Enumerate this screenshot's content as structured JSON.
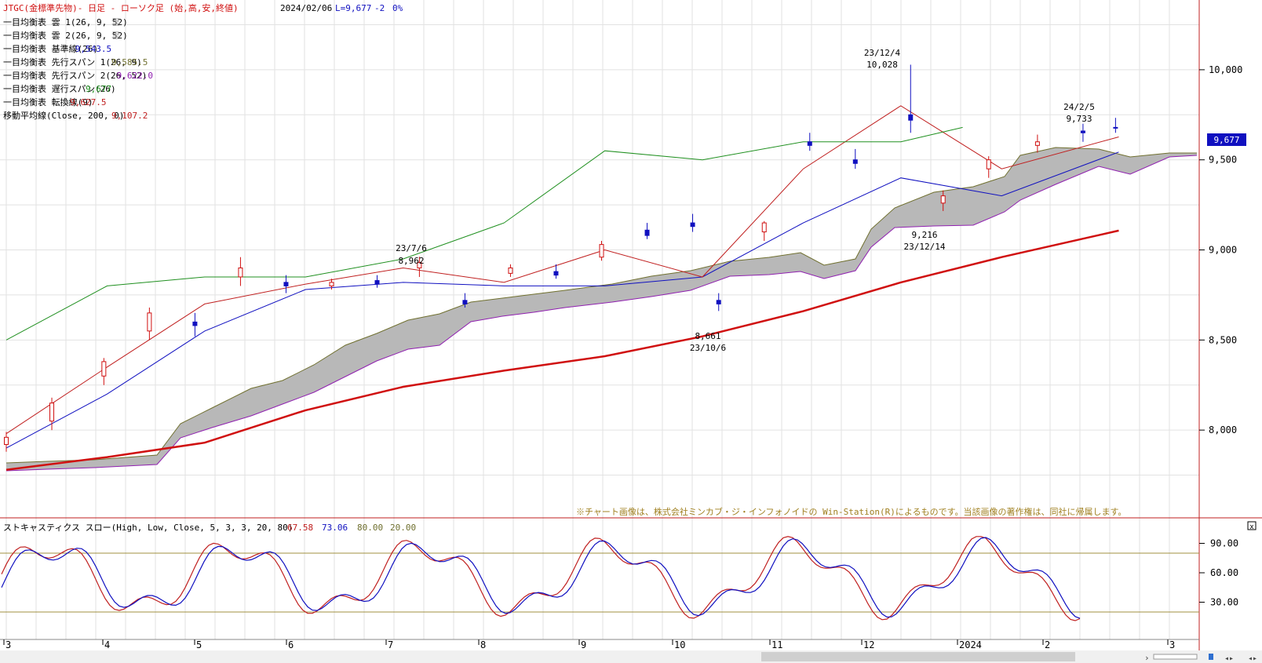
{
  "header": {
    "title": "JTGC(金標準先物)- 日足 - ローソク足 (始,高,安,終値)",
    "date": "2024/02/06",
    "last": "L=9,677",
    "change": "-2",
    "pct": "0%"
  },
  "legend": [
    {
      "label": "一目均衡表 雲 1(26, 9, 52)",
      "value": "雲",
      "color": "#a0a0a0"
    },
    {
      "label": "一目均衡表 雲 2(26, 9, 52)",
      "value": "雲",
      "color": "#a0a0a0"
    },
    {
      "label": "一目均衡表 基準線(26)",
      "value": "9,543.5",
      "color": "#1010c0"
    },
    {
      "label": "一目均衡表 先行スパン 1(26, 9)",
      "value": "9,585.5",
      "color": "#707030"
    },
    {
      "label": "一目均衡表 先行スパン 2(26, 52)",
      "value": "9,622.0",
      "color": "#9020b0"
    },
    {
      "label": "一目均衡表 遅行スパン(26)",
      "value": "9,677",
      "color": "#209020"
    },
    {
      "label": "一目均衡表 転換線(9)",
      "value": "9,627.5",
      "color": "#c02020"
    },
    {
      "label": "移動平均線(Close, 200, 0)",
      "value": "9,107.2",
      "color": "#c02020"
    }
  ],
  "annotations": [
    {
      "date": "23/7/6",
      "value": "8,962"
    },
    {
      "date": "23/12/4",
      "value": "10,028"
    },
    {
      "date": "24/2/5",
      "value": "9,733"
    },
    {
      "date": "23/12/14",
      "value": "9,216"
    },
    {
      "date": "23/10/6",
      "value": "8,661"
    }
  ],
  "last_price_tag": "9,677",
  "copyright": "※チャート画像は、株式会社ミンカブ・ジ・インフォノイドの Win-Station(R)によるものです。当該画像の著作権は、同社に帰属します。",
  "stoch": {
    "title": "ストキャスティクス スロー(High, Low, Close, 5, 3, 3, 20, 80)",
    "k_value": "67.58",
    "d_value": "73.06",
    "upper": "80.00",
    "lower": "20.00",
    "k_color": "#c02020",
    "d_color": "#1010c0",
    "ticks": [
      "90.00",
      "60.00",
      "30.00"
    ]
  },
  "price_ticks": [
    "10,000",
    "9,500",
    "9,000",
    "8,500",
    "8,000"
  ],
  "x_labels": [
    "3",
    "4",
    "5",
    "6",
    "7",
    "8",
    "9",
    "10",
    "11",
    "12",
    "2024",
    "2",
    "3"
  ],
  "chart_data": {
    "type": "candlestick",
    "title": "JTGC(金標準先物)- 日足 - ローソク足",
    "ylim": [
      7600,
      10300
    ],
    "x_range": [
      "2023-03-01",
      "2024-03-01"
    ],
    "series": [
      {
        "name": "移動平均線(Close, 200, 0)",
        "points": [
          [
            "2023-03-01",
            7780
          ],
          [
            "2023-04-01",
            7850
          ],
          [
            "2023-05-01",
            7930
          ],
          [
            "2023-06-01",
            8110
          ],
          [
            "2023-07-01",
            8240
          ],
          [
            "2023-08-01",
            8330
          ],
          [
            "2023-09-01",
            8410
          ],
          [
            "2023-10-01",
            8520
          ],
          [
            "2023-11-01",
            8660
          ],
          [
            "2023-12-01",
            8820
          ],
          [
            "2024-01-01",
            8960
          ],
          [
            "2024-02-06",
            9107
          ]
        ]
      },
      {
        "name": "一目均衡表 基準線(26)",
        "points": [
          [
            "2023-03-01",
            7900
          ],
          [
            "2023-04-01",
            8200
          ],
          [
            "2023-05-01",
            8550
          ],
          [
            "2023-06-01",
            8780
          ],
          [
            "2023-07-01",
            8820
          ],
          [
            "2023-08-01",
            8800
          ],
          [
            "2023-09-01",
            8800
          ],
          [
            "2023-10-01",
            8850
          ],
          [
            "2023-11-01",
            9150
          ],
          [
            "2023-12-01",
            9400
          ],
          [
            "2024-01-01",
            9300
          ],
          [
            "2024-02-06",
            9543
          ]
        ]
      },
      {
        "name": "一目均衡表 転換線(9)",
        "points": [
          [
            "2023-03-01",
            7980
          ],
          [
            "2023-04-01",
            8350
          ],
          [
            "2023-05-01",
            8700
          ],
          [
            "2023-06-01",
            8810
          ],
          [
            "2023-07-01",
            8900
          ],
          [
            "2023-08-01",
            8820
          ],
          [
            "2023-09-01",
            9000
          ],
          [
            "2023-10-01",
            8850
          ],
          [
            "2023-11-01",
            9450
          ],
          [
            "2023-12-01",
            9800
          ],
          [
            "2024-01-01",
            9450
          ],
          [
            "2024-02-06",
            9627
          ]
        ]
      },
      {
        "name": "一目均衡表 遅行スパン(26)",
        "points": [
          [
            "2023-03-01",
            8500
          ],
          [
            "2023-04-01",
            8800
          ],
          [
            "2023-05-01",
            8850
          ],
          [
            "2023-06-01",
            8850
          ],
          [
            "2023-07-01",
            8950
          ],
          [
            "2023-08-01",
            9150
          ],
          [
            "2023-09-01",
            9550
          ],
          [
            "2023-10-01",
            9500
          ],
          [
            "2023-11-01",
            9600
          ],
          [
            "2023-12-01",
            9600
          ],
          [
            "2023-12-20",
            9680
          ]
        ]
      }
    ],
    "candles": [
      [
        "2023-03-01",
        7920,
        7990,
        7880,
        7960
      ],
      [
        "2023-03-15",
        8050,
        8180,
        8000,
        8150
      ],
      [
        "2023-03-31",
        8300,
        8400,
        8250,
        8380
      ],
      [
        "2023-04-14",
        8550,
        8680,
        8500,
        8650
      ],
      [
        "2023-04-28",
        8600,
        8650,
        8520,
        8580
      ],
      [
        "2023-05-12",
        8850,
        8960,
        8800,
        8900
      ],
      [
        "2023-05-26",
        8820,
        8860,
        8760,
        8800
      ],
      [
        "2023-06-09",
        8800,
        8840,
        8780,
        8820
      ],
      [
        "2023-06-23",
        8830,
        8860,
        8790,
        8810
      ],
      [
        "2023-07-06",
        8900,
        8962,
        8850,
        8930
      ],
      [
        "2023-07-20",
        8720,
        8760,
        8680,
        8700
      ],
      [
        "2023-08-03",
        8870,
        8920,
        8850,
        8900
      ],
      [
        "2023-08-17",
        8880,
        8920,
        8840,
        8860
      ],
      [
        "2023-08-31",
        8960,
        9050,
        8940,
        9030
      ],
      [
        "2023-09-14",
        9110,
        9150,
        9060,
        9080
      ],
      [
        "2023-09-28",
        9150,
        9200,
        9100,
        9130
      ],
      [
        "2023-10-06",
        8720,
        8760,
        8661,
        8700
      ],
      [
        "2023-10-20",
        9100,
        9160,
        9050,
        9150
      ],
      [
        "2023-11-03",
        9600,
        9650,
        9550,
        9580
      ],
      [
        "2023-11-17",
        9500,
        9560,
        9450,
        9480
      ],
      [
        "2023-12-04",
        9750,
        10028,
        9650,
        9720
      ],
      [
        "2023-12-14",
        9260,
        9330,
        9216,
        9300
      ],
      [
        "2023-12-28",
        9450,
        9520,
        9400,
        9500
      ],
      [
        "2024-01-12",
        9580,
        9640,
        9540,
        9600
      ],
      [
        "2024-01-26",
        9660,
        9700,
        9600,
        9650
      ],
      [
        "2024-02-05",
        9680,
        9733,
        9650,
        9677
      ]
    ]
  }
}
